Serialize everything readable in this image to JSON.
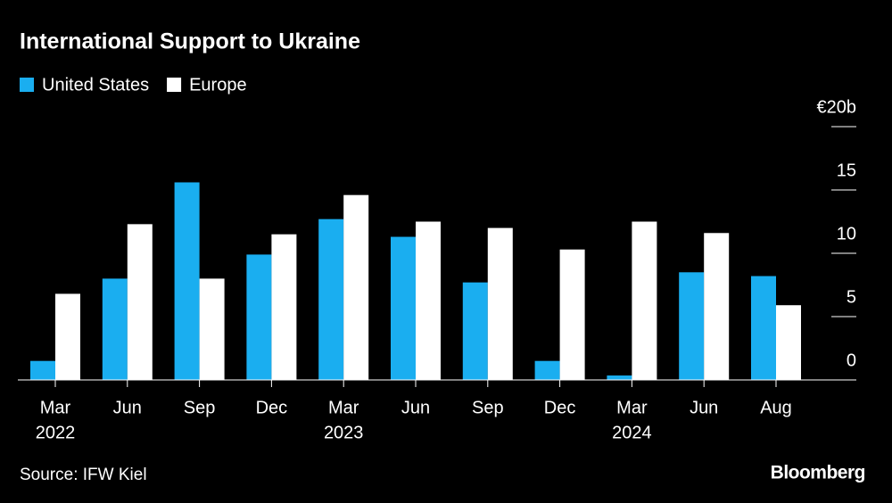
{
  "chart_data": {
    "type": "bar",
    "title": "International Support to Ukraine",
    "categories": [
      "Mar",
      "Jun",
      "Sep",
      "Dec",
      "Mar",
      "Jun",
      "Sep",
      "Dec",
      "Mar",
      "Jun",
      "Aug"
    ],
    "year_labels": [
      "2022",
      null,
      null,
      null,
      "2023",
      null,
      null,
      null,
      "2024",
      null,
      null
    ],
    "series": [
      {
        "name": "United States",
        "color": "#1aaef0",
        "values": [
          1.5,
          8.0,
          15.6,
          9.9,
          12.7,
          11.3,
          7.7,
          1.5,
          0.35,
          8.5,
          8.2
        ]
      },
      {
        "name": "Europe",
        "color": "#ffffff",
        "values": [
          6.8,
          12.3,
          8.0,
          11.5,
          14.6,
          12.5,
          12.0,
          10.3,
          12.5,
          11.6,
          5.9
        ]
      }
    ],
    "ylim": [
      0,
      20
    ],
    "yticks": [
      0,
      5,
      10,
      15,
      {
        "value": 20,
        "label": "€20b"
      }
    ],
    "source": "Source: IFW Kiel",
    "brand": "Bloomberg"
  }
}
